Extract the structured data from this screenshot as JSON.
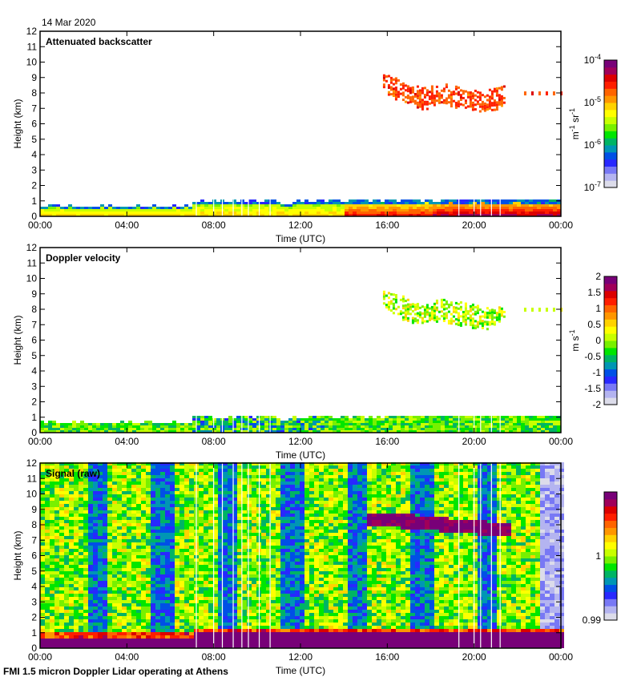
{
  "header": {
    "date": "14 Mar 2020"
  },
  "footer": {
    "caption": "FMI 1.5 micron Doppler Lidar operating at Athens"
  },
  "colors": {
    "rainbow": [
      "#dcdcea",
      "#b4b4f0",
      "#7878f5",
      "#2828ff",
      "#0050e6",
      "#0096b4",
      "#00b464",
      "#00e600",
      "#78f000",
      "#c8ff00",
      "#ffff00",
      "#ffd200",
      "#ff9600",
      "#ff6400",
      "#ff1e00",
      "#dc0000",
      "#a0005a",
      "#780078"
    ],
    "background": "#ffffff"
  },
  "chart_data": [
    {
      "type": "heatmap",
      "title": "Attenuated backscatter",
      "xlabel": "Time (UTC)",
      "ylabel": "Height (km)",
      "xlim": [
        "00:00",
        "00:00"
      ],
      "ylim": [
        0,
        12
      ],
      "xticks": [
        "00:00",
        "04:00",
        "08:00",
        "12:00",
        "16:00",
        "20:00",
        "00:00"
      ],
      "yticks": [
        "0",
        "1",
        "2",
        "3",
        "4",
        "5",
        "6",
        "7",
        "8",
        "9",
        "10",
        "11",
        "12"
      ],
      "colorbar": {
        "label_base": "m",
        "label_exp1": "-1",
        "label_mid": " sr",
        "label_exp2": "-1",
        "scale": "log",
        "ticks": [
          {
            "base": "10",
            "exp": "-4"
          },
          {
            "base": "10",
            "exp": "-5"
          },
          {
            "base": "10",
            "exp": "-6"
          },
          {
            "base": "10",
            "exp": "-7"
          }
        ],
        "range": [
          1e-07,
          0.0001
        ]
      },
      "features": [
        {
          "name": "boundary layer",
          "time_start_h": 0,
          "time_end_h": 24,
          "top_km": [
            0.6,
            0.55,
            0.6,
            0.9,
            0.9,
            0.95,
            1.0
          ]
        },
        {
          "name": "cirrus layer",
          "time_start_h": 15.5,
          "time_end_h": 24,
          "height_km": [
            8.8,
            8.0,
            7.5,
            7.8,
            7.5,
            7.3,
            7.8,
            8.0
          ]
        }
      ]
    },
    {
      "type": "heatmap",
      "title": "Doppler velocity",
      "xlabel": "Time (UTC)",
      "ylabel": "Height (km)",
      "xlim": [
        "00:00",
        "00:00"
      ],
      "ylim": [
        0,
        12
      ],
      "xticks": [
        "00:00",
        "04:00",
        "08:00",
        "12:00",
        "16:00",
        "20:00",
        "00:00"
      ],
      "yticks": [
        "0",
        "1",
        "2",
        "3",
        "4",
        "5",
        "6",
        "7",
        "8",
        "9",
        "10",
        "11",
        "12"
      ],
      "colorbar": {
        "label_base": "m s",
        "label_exp1": "-1",
        "scale": "linear",
        "ticks": [
          "2",
          "1.5",
          "1",
          "0.5",
          "0",
          "-0.5",
          "-1",
          "-1.5",
          "-2"
        ],
        "range": [
          -2,
          2
        ]
      }
    },
    {
      "type": "heatmap",
      "title": "Signal (raw)",
      "xlabel": "Time (UTC)",
      "ylabel": "Height (km)",
      "xlim": [
        "00:00",
        "00:00"
      ],
      "ylim": [
        0,
        12
      ],
      "xticks": [
        "00:00",
        "04:00",
        "08:00",
        "12:00",
        "16:00",
        "20:00",
        "00:00"
      ],
      "yticks": [
        "0",
        "1",
        "2",
        "3",
        "4",
        "5",
        "6",
        "7",
        "8",
        "9",
        "10",
        "11",
        "12"
      ],
      "colorbar": {
        "scale": "linear",
        "ticks": [
          "1",
          "0.99"
        ],
        "range": [
          0.99,
          1.01
        ]
      },
      "blue_bands_h": [
        [
          2.0,
          3.0
        ],
        [
          5.0,
          6.0
        ],
        [
          8.0,
          9.0
        ],
        [
          11.0,
          12.0
        ],
        [
          14.0,
          15.0
        ],
        [
          17.0,
          18.0
        ],
        [
          20.0,
          21.0
        ],
        [
          23.0,
          24.0
        ]
      ]
    }
  ]
}
